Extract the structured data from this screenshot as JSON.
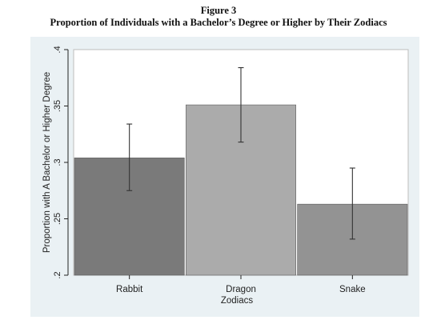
{
  "figure": {
    "number": "Figure 3",
    "title": "Proportion of Individuals with a Bachelor’s Degree or Higher by Their Zodiacs"
  },
  "chart_data": {
    "type": "bar",
    "categories": [
      "Rabbit",
      "Dragon",
      "Snake"
    ],
    "values": [
      0.304,
      0.351,
      0.263
    ],
    "error_bars": [
      {
        "low": 0.275,
        "high": 0.334
      },
      {
        "low": 0.318,
        "high": 0.384
      },
      {
        "low": 0.232,
        "high": 0.295
      }
    ],
    "bar_colors": [
      "#7a7a7a",
      "#ababab",
      "#939393"
    ],
    "xlabel": "Zodiacs",
    "ylabel": "Proportion with A Bachelor or Higher Degree",
    "ylim": [
      0.2,
      0.4
    ],
    "yticks": [
      0.2,
      0.25,
      0.3,
      0.35,
      0.4
    ],
    "ytick_labels": [
      ".2",
      ".25",
      ".3",
      ".35",
      ".4"
    ],
    "grid": false,
    "legend": "none"
  }
}
